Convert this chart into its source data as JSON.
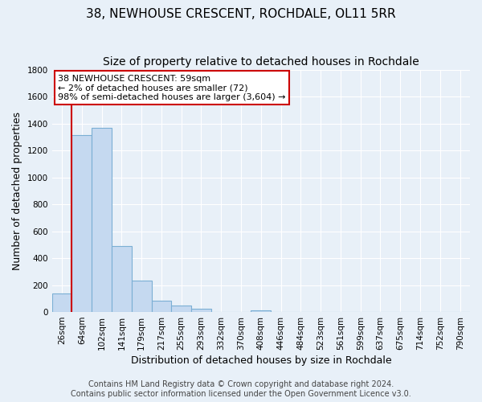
{
  "title": "38, NEWHOUSE CRESCENT, ROCHDALE, OL11 5RR",
  "subtitle": "Size of property relative to detached houses in Rochdale",
  "xlabel": "Distribution of detached houses by size in Rochdale",
  "ylabel": "Number of detached properties",
  "bin_labels": [
    "26sqm",
    "64sqm",
    "102sqm",
    "141sqm",
    "179sqm",
    "217sqm",
    "255sqm",
    "293sqm",
    "332sqm",
    "370sqm",
    "408sqm",
    "446sqm",
    "484sqm",
    "523sqm",
    "561sqm",
    "599sqm",
    "637sqm",
    "675sqm",
    "714sqm",
    "752sqm",
    "790sqm"
  ],
  "bar_values": [
    140,
    1315,
    1365,
    490,
    235,
    85,
    50,
    25,
    0,
    0,
    15,
    0,
    0,
    0,
    0,
    0,
    0,
    0,
    0,
    0,
    0
  ],
  "bar_color": "#c5d9f0",
  "bar_edgecolor": "#7bafd4",
  "annotation_box_text": "38 NEWHOUSE CRESCENT: 59sqm\n← 2% of detached houses are smaller (72)\n98% of semi-detached houses are larger (3,604) →",
  "annotation_box_color": "#ffffff",
  "annotation_box_edgecolor": "#cc0000",
  "red_line_color": "#cc0000",
  "red_line_x": 0.5,
  "ylim": [
    0,
    1800
  ],
  "yticks": [
    0,
    200,
    400,
    600,
    800,
    1000,
    1200,
    1400,
    1600,
    1800
  ],
  "footer_line1": "Contains HM Land Registry data © Crown copyright and database right 2024.",
  "footer_line2": "Contains public sector information licensed under the Open Government Licence v3.0.",
  "background_color": "#e8f0f8",
  "plot_background_color": "#e8f0f8",
  "grid_color": "#ffffff",
  "title_fontsize": 11,
  "subtitle_fontsize": 10,
  "axis_label_fontsize": 9,
  "tick_fontsize": 7.5,
  "footer_fontsize": 7
}
